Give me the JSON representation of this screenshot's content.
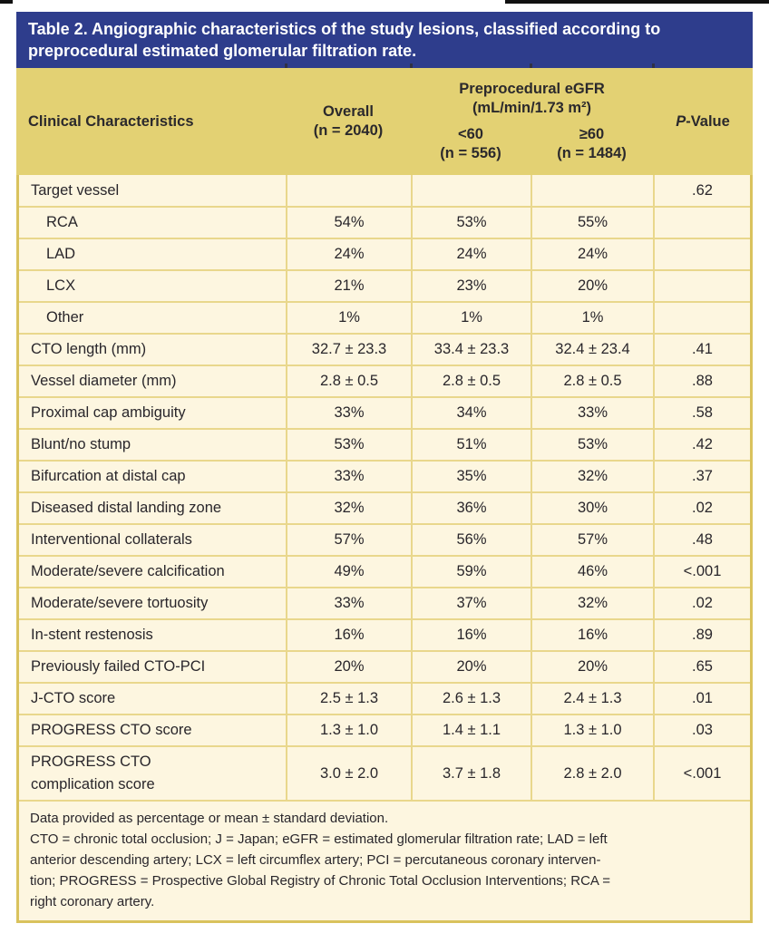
{
  "colors": {
    "title_bg": "#2e3d8c",
    "header_bg": "#e3d173",
    "body_bg": "#fdf6e0",
    "border_gold": "#d9c25d",
    "divider_gold": "#e9d78c",
    "title_text": "#ffffff",
    "text": "#2b292c"
  },
  "title": {
    "line1": "Table 2. Angiographic characteristics of the study lesions, classified according to",
    "line2": "preprocedural estimated glomerular filtration rate."
  },
  "header": {
    "col_characteristics": "Clinical Characteristics",
    "col_overall_line1": "Overall",
    "col_overall_line2": "(n = 2040)",
    "group_line1": "Preprocedural eGFR",
    "group_line2": "(mL/min/1.73 m²)",
    "col_lt60_line1": "<60",
    "col_lt60_line2": "(n = 556)",
    "col_gte60_line1": "≥60",
    "col_gte60_line2": "(n = 1484)",
    "p_italic": "P",
    "p_rest": "-Value"
  },
  "table": {
    "rows": [
      {
        "label": "Target vessel",
        "indent": false,
        "overall": "",
        "lt60": "",
        "gte60": "",
        "p": ".62"
      },
      {
        "label": "RCA",
        "indent": true,
        "overall": "54%",
        "lt60": "53%",
        "gte60": "55%",
        "p": ""
      },
      {
        "label": "LAD",
        "indent": true,
        "overall": "24%",
        "lt60": "24%",
        "gte60": "24%",
        "p": ""
      },
      {
        "label": "LCX",
        "indent": true,
        "overall": "21%",
        "lt60": "23%",
        "gte60": "20%",
        "p": ""
      },
      {
        "label": "Other",
        "indent": true,
        "overall": "1%",
        "lt60": "1%",
        "gte60": "1%",
        "p": ""
      },
      {
        "label": "CTO length (mm)",
        "indent": false,
        "overall": "32.7 ± 23.3",
        "lt60": "33.4 ± 23.3",
        "gte60": "32.4 ± 23.4",
        "p": ".41"
      },
      {
        "label": "Vessel diameter (mm)",
        "indent": false,
        "overall": "2.8 ± 0.5",
        "lt60": "2.8 ± 0.5",
        "gte60": "2.8 ± 0.5",
        "p": ".88"
      },
      {
        "label": "Proximal cap ambiguity",
        "indent": false,
        "overall": "33%",
        "lt60": "34%",
        "gte60": "33%",
        "p": ".58"
      },
      {
        "label": "Blunt/no stump",
        "indent": false,
        "overall": "53%",
        "lt60": "51%",
        "gte60": "53%",
        "p": ".42"
      },
      {
        "label": "Bifurcation at distal cap",
        "indent": false,
        "overall": "33%",
        "lt60": "35%",
        "gte60": "32%",
        "p": ".37"
      },
      {
        "label": "Diseased distal landing zone",
        "indent": false,
        "overall": "32%",
        "lt60": "36%",
        "gte60": "30%",
        "p": ".02"
      },
      {
        "label": "Interventional collaterals",
        "indent": false,
        "overall": "57%",
        "lt60": "56%",
        "gte60": "57%",
        "p": ".48"
      },
      {
        "label": "Moderate/severe calcification",
        "indent": false,
        "overall": "49%",
        "lt60": "59%",
        "gte60": "46%",
        "p": "<.001"
      },
      {
        "label": "Moderate/severe tortuosity",
        "indent": false,
        "overall": "33%",
        "lt60": "37%",
        "gte60": "32%",
        "p": ".02"
      },
      {
        "label": "In-stent restenosis",
        "indent": false,
        "overall": "16%",
        "lt60": "16%",
        "gte60": "16%",
        "p": ".89"
      },
      {
        "label": "Previously failed CTO-PCI",
        "indent": false,
        "overall": "20%",
        "lt60": "20%",
        "gte60": "20%",
        "p": ".65"
      },
      {
        "label": "J-CTO score",
        "indent": false,
        "overall": "2.5 ± 1.3",
        "lt60": "2.6 ± 1.3",
        "gte60": "2.4 ± 1.3",
        "p": ".01"
      },
      {
        "label": "PROGRESS CTO score",
        "indent": false,
        "overall": "1.3 ± 1.0",
        "lt60": "1.4 ± 1.1",
        "gte60": "1.3 ± 1.0",
        "p": ".03"
      },
      {
        "label": "PROGRESS CTO\ncomplication score",
        "indent": false,
        "overall": "3.0 ± 2.0",
        "lt60": "3.7 ± 1.8",
        "gte60": "2.8 ± 2.0",
        "p": "<.001"
      }
    ]
  },
  "footnotes": {
    "lines": [
      "Data provided as percentage or mean ± standard deviation.",
      "CTO = chronic total occlusion; J = Japan; eGFR = estimated glomerular filtration rate; LAD = left",
      "anterior descending artery; LCX = left circumflex artery; PCI = percutaneous coronary interven-",
      "tion; PROGRESS = Prospective Global Registry of Chronic Total Occlusion Interventions; RCA =",
      "right coronary artery."
    ]
  }
}
